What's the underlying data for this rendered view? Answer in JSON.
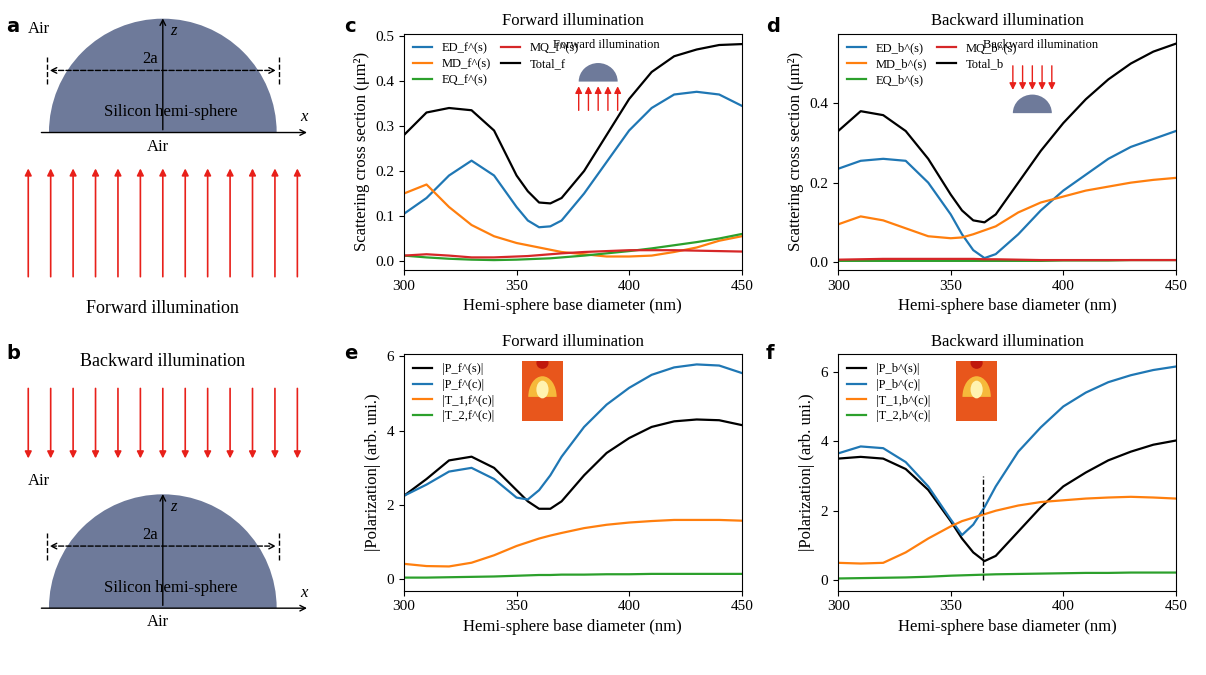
{
  "diagrams": [
    {
      "panel": "a",
      "medium_top": "Air",
      "medium_bottom": "Air",
      "object": "Silicon hemi-sphere",
      "diameter": "2a",
      "axis_x": "x",
      "axis_z": "z",
      "illumination": "Forward illumination"
    },
    {
      "panel": "b",
      "medium_top": "Air",
      "medium_bottom": "Air",
      "object": "Silicon hemi-sphere",
      "diameter": "2a",
      "axis_x": "x",
      "axis_z": "z",
      "illumination": "Backward illumination"
    }
  ],
  "chart_data": [
    {
      "type": "line",
      "panel": "c",
      "title": "Forward illumination",
      "annotations": [
        "Forward illumination"
      ],
      "xlabel": "Hemi-sphere base diameter (nm)",
      "ylabel": "Scattering cross section (μm²)",
      "x": [
        300,
        310,
        320,
        330,
        340,
        350,
        355,
        360,
        365,
        370,
        380,
        390,
        400,
        410,
        420,
        430,
        440,
        450
      ],
      "xlim": [
        300,
        450
      ],
      "xticks": [
        300,
        350,
        400,
        450
      ],
      "ylim": [
        -0.02,
        0.505
      ],
      "yticks": [
        0.0,
        0.1,
        0.2,
        0.3,
        0.4,
        0.5
      ],
      "legend": "upper left",
      "series": [
        {
          "name": "ED_f^(s)",
          "color": "#1f77b4",
          "values": [
            0.105,
            0.14,
            0.19,
            0.223,
            0.19,
            0.12,
            0.09,
            0.075,
            0.077,
            0.09,
            0.15,
            0.22,
            0.29,
            0.34,
            0.37,
            0.376,
            0.37,
            0.345
          ]
        },
        {
          "name": "MD_f^(s)",
          "color": "#ff7f0e",
          "values": [
            0.15,
            0.17,
            0.12,
            0.08,
            0.055,
            0.04,
            0.035,
            0.03,
            0.025,
            0.02,
            0.015,
            0.01,
            0.01,
            0.012,
            0.02,
            0.03,
            0.045,
            0.055
          ]
        },
        {
          "name": "EQ_f^(s)",
          "color": "#2ca02c",
          "values": [
            0.012,
            0.008,
            0.005,
            0.003,
            0.002,
            0.003,
            0.004,
            0.005,
            0.006,
            0.008,
            0.012,
            0.017,
            0.022,
            0.028,
            0.035,
            0.042,
            0.05,
            0.06
          ]
        },
        {
          "name": "MQ_f^(s)",
          "color": "#d62728",
          "values": [
            0.012,
            0.015,
            0.012,
            0.008,
            0.008,
            0.01,
            0.011,
            0.013,
            0.015,
            0.017,
            0.02,
            0.022,
            0.024,
            0.024,
            0.024,
            0.023,
            0.022,
            0.021
          ]
        },
        {
          "name": "Total_f",
          "color": "#000000",
          "values": [
            0.28,
            0.33,
            0.34,
            0.335,
            0.29,
            0.19,
            0.155,
            0.13,
            0.128,
            0.14,
            0.2,
            0.28,
            0.36,
            0.42,
            0.455,
            0.47,
            0.48,
            0.482
          ]
        }
      ]
    },
    {
      "type": "line",
      "panel": "d",
      "title": "Backward illumination",
      "annotations": [
        "Backward illumination"
      ],
      "xlabel": "Hemi-sphere base diameter (nm)",
      "ylabel": "Scattering cross section (μm²)",
      "x": [
        300,
        310,
        320,
        330,
        340,
        350,
        355,
        360,
        365,
        370,
        380,
        390,
        400,
        410,
        420,
        430,
        440,
        450
      ],
      "xlim": [
        300,
        450
      ],
      "xticks": [
        300,
        350,
        400,
        450
      ],
      "ylim": [
        -0.02,
        0.575
      ],
      "yticks": [
        0.0,
        0.2,
        0.4
      ],
      "legend": "upper left",
      "series": [
        {
          "name": "ED_b^(s)",
          "color": "#1f77b4",
          "values": [
            0.235,
            0.255,
            0.26,
            0.255,
            0.2,
            0.12,
            0.07,
            0.03,
            0.01,
            0.02,
            0.07,
            0.13,
            0.18,
            0.22,
            0.26,
            0.29,
            0.31,
            0.33
          ]
        },
        {
          "name": "MD_b^(s)",
          "color": "#ff7f0e",
          "values": [
            0.095,
            0.115,
            0.105,
            0.085,
            0.065,
            0.06,
            0.062,
            0.07,
            0.08,
            0.09,
            0.125,
            0.15,
            0.165,
            0.18,
            0.19,
            0.2,
            0.207,
            0.212
          ]
        },
        {
          "name": "EQ_b^(s)",
          "color": "#2ca02c",
          "values": [
            0.003,
            0.003,
            0.003,
            0.003,
            0.003,
            0.003,
            0.003,
            0.003,
            0.003,
            0.003,
            0.003,
            0.003,
            0.004,
            0.004,
            0.004,
            0.005,
            0.005,
            0.005
          ]
        },
        {
          "name": "MQ_b^(s)",
          "color": "#d62728",
          "values": [
            0.006,
            0.007,
            0.008,
            0.008,
            0.008,
            0.008,
            0.008,
            0.008,
            0.007,
            0.007,
            0.006,
            0.005,
            0.005,
            0.005,
            0.005,
            0.005,
            0.005,
            0.005
          ]
        },
        {
          "name": "Total_b",
          "color": "#000000",
          "values": [
            0.33,
            0.38,
            0.37,
            0.33,
            0.26,
            0.17,
            0.13,
            0.105,
            0.1,
            0.12,
            0.2,
            0.28,
            0.35,
            0.41,
            0.46,
            0.5,
            0.53,
            0.55
          ]
        }
      ]
    },
    {
      "type": "line",
      "panel": "e",
      "title": "Forward illumination",
      "xlabel": "Hemi-sphere base diameter (nm)",
      "ylabel": "|Polarization| (arb. uni.)",
      "x": [
        300,
        310,
        320,
        330,
        340,
        350,
        355,
        360,
        365,
        370,
        380,
        390,
        400,
        410,
        420,
        430,
        440,
        450
      ],
      "xlim": [
        300,
        450
      ],
      "xticks": [
        300,
        350,
        400,
        450
      ],
      "ylim": [
        -0.3,
        6.05
      ],
      "yticks": [
        0,
        2,
        4,
        6
      ],
      "legend": "upper left",
      "series": [
        {
          "name": "|P_f^(s)|",
          "color": "#000000",
          "values": [
            2.25,
            2.7,
            3.2,
            3.3,
            3.0,
            2.4,
            2.1,
            1.9,
            1.9,
            2.1,
            2.8,
            3.4,
            3.8,
            4.1,
            4.25,
            4.3,
            4.28,
            4.15
          ]
        },
        {
          "name": "|P_f^(c)|",
          "color": "#1f77b4",
          "values": [
            2.25,
            2.55,
            2.9,
            3.0,
            2.7,
            2.2,
            2.15,
            2.4,
            2.8,
            3.3,
            4.1,
            4.7,
            5.15,
            5.5,
            5.7,
            5.78,
            5.75,
            5.55
          ]
        },
        {
          "name": "|T_1,f^(c)|",
          "color": "#ff7f0e",
          "values": [
            0.42,
            0.36,
            0.35,
            0.45,
            0.65,
            0.9,
            1.0,
            1.1,
            1.18,
            1.25,
            1.38,
            1.47,
            1.53,
            1.57,
            1.6,
            1.6,
            1.6,
            1.58
          ]
        },
        {
          "name": "|T_2,f^(c)|",
          "color": "#2ca02c",
          "values": [
            0.05,
            0.05,
            0.06,
            0.07,
            0.08,
            0.1,
            0.11,
            0.12,
            0.12,
            0.13,
            0.13,
            0.14,
            0.14,
            0.15,
            0.15,
            0.15,
            0.15,
            0.15
          ]
        }
      ]
    },
    {
      "type": "line",
      "panel": "f",
      "title": "Backward illumination",
      "xlabel": "Hemi-sphere base diameter (nm)",
      "ylabel": "|Polarization| (arb. uni.)",
      "x": [
        300,
        310,
        320,
        330,
        340,
        350,
        355,
        360,
        365,
        370,
        380,
        390,
        400,
        410,
        420,
        430,
        440,
        450
      ],
      "xlim": [
        300,
        450
      ],
      "xticks": [
        300,
        350,
        400,
        450
      ],
      "ylim": [
        -0.3,
        6.5
      ],
      "yticks": [
        0,
        2,
        4,
        6
      ],
      "legend": "upper left",
      "reference_line": {
        "x": 364.5,
        "y": [
          0,
          3.0
        ]
      },
      "series": [
        {
          "name": "|P_b^(s)|",
          "color": "#000000",
          "values": [
            3.5,
            3.55,
            3.5,
            3.2,
            2.6,
            1.7,
            1.2,
            0.8,
            0.55,
            0.7,
            1.4,
            2.1,
            2.7,
            3.1,
            3.45,
            3.7,
            3.9,
            4.02
          ]
        },
        {
          "name": "|P_b^(c)|",
          "color": "#1f77b4",
          "values": [
            3.65,
            3.85,
            3.8,
            3.4,
            2.7,
            1.75,
            1.3,
            1.6,
            2.1,
            2.7,
            3.7,
            4.4,
            5.0,
            5.4,
            5.7,
            5.9,
            6.05,
            6.15
          ]
        },
        {
          "name": "|T_1,b^(c)|",
          "color": "#ff7f0e",
          "values": [
            0.5,
            0.48,
            0.5,
            0.8,
            1.2,
            1.55,
            1.7,
            1.8,
            1.9,
            2.0,
            2.15,
            2.25,
            2.3,
            2.35,
            2.38,
            2.4,
            2.38,
            2.35
          ]
        },
        {
          "name": "|T_2,b^(c)|",
          "color": "#2ca02c",
          "values": [
            0.05,
            0.06,
            0.07,
            0.08,
            0.1,
            0.13,
            0.14,
            0.15,
            0.16,
            0.17,
            0.18,
            0.19,
            0.2,
            0.21,
            0.21,
            0.22,
            0.22,
            0.22
          ]
        }
      ]
    }
  ]
}
